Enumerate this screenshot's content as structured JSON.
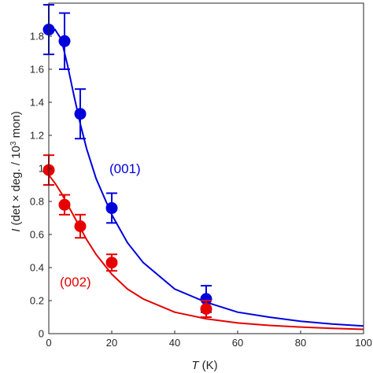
{
  "chart_data": {
    "type": "scatter",
    "xlabel": {
      "symbol": "T",
      "unit": " (K)"
    },
    "ylabel": {
      "symbol": "I",
      "text": " (det × deg. / 10",
      "sup": "3",
      "unit": " mon)"
    },
    "xlim": [
      0,
      100
    ],
    "ylim": [
      0,
      2
    ],
    "xticks": [
      "0",
      "20",
      "40",
      "60",
      "80",
      "100"
    ],
    "yticks": [
      "0",
      "0.2",
      "0.4",
      "0.6",
      "0.8",
      "1",
      "1.2",
      "1.4",
      "1.6",
      "1.8"
    ],
    "grid": false,
    "series": [
      {
        "name": "(001)",
        "color": "#0000dd",
        "points": [
          {
            "x": 0,
            "y": 1.84,
            "err": 0.15
          },
          {
            "x": 5,
            "y": 1.77,
            "err": 0.17
          },
          {
            "x": 10,
            "y": 1.33,
            "err": 0.15
          },
          {
            "x": 20,
            "y": 0.76,
            "err": 0.09
          },
          {
            "x": 50,
            "y": 0.21,
            "err": 0.08
          }
        ],
        "fit": [
          [
            0,
            1.81
          ],
          [
            2,
            1.84
          ],
          [
            4,
            1.78
          ],
          [
            6,
            1.62
          ],
          [
            8,
            1.44
          ],
          [
            10,
            1.27
          ],
          [
            12,
            1.12
          ],
          [
            15,
            0.94
          ],
          [
            20,
            0.72
          ],
          [
            25,
            0.55
          ],
          [
            30,
            0.43
          ],
          [
            40,
            0.27
          ],
          [
            50,
            0.19
          ],
          [
            60,
            0.13
          ],
          [
            70,
            0.1
          ],
          [
            80,
            0.075
          ],
          [
            90,
            0.058
          ],
          [
            100,
            0.046
          ]
        ]
      },
      {
        "name": "(002)",
        "color": "#e60000",
        "points": [
          {
            "x": 0,
            "y": 0.99,
            "err": 0.09
          },
          {
            "x": 5,
            "y": 0.78,
            "err": 0.06
          },
          {
            "x": 10,
            "y": 0.65,
            "err": 0.07
          },
          {
            "x": 20,
            "y": 0.43,
            "err": 0.05
          },
          {
            "x": 50,
            "y": 0.15,
            "err": 0.05
          }
        ],
        "fit": [
          [
            0,
            0.96
          ],
          [
            2,
            0.91
          ],
          [
            4,
            0.85
          ],
          [
            6,
            0.78
          ],
          [
            8,
            0.71
          ],
          [
            10,
            0.64
          ],
          [
            12,
            0.57
          ],
          [
            15,
            0.48
          ],
          [
            20,
            0.36
          ],
          [
            25,
            0.27
          ],
          [
            30,
            0.21
          ],
          [
            40,
            0.13
          ],
          [
            50,
            0.09
          ],
          [
            60,
            0.065
          ],
          [
            70,
            0.05
          ],
          [
            80,
            0.04
          ],
          [
            90,
            0.032
          ],
          [
            100,
            0.026
          ]
        ]
      }
    ]
  }
}
